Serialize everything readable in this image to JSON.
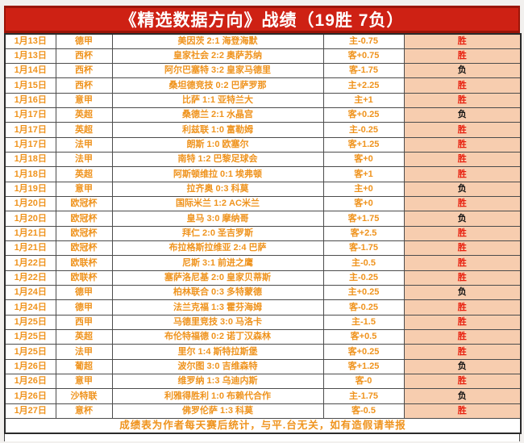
{
  "header": {
    "title": "《精选数据方向》战绩（19胜 7负）",
    "record_wins": 19,
    "record_losses": 7,
    "bg_color": "#ce2114",
    "border_color": "#9b1508",
    "text_color": "#ffffff"
  },
  "table": {
    "text_color": "#ef931d",
    "result_bg_color": "#f7cdaf",
    "win_color": "#e8200f",
    "loss_color": "#141414",
    "win_label": "胜",
    "loss_label": "负",
    "columns": [
      "date",
      "league",
      "match",
      "handicap",
      "result"
    ],
    "rows": [
      {
        "date": "1月13日",
        "league": "德甲",
        "match": "美因茨 2:1 海登海默",
        "handicap": "主-0.75",
        "outcome": "win"
      },
      {
        "date": "1月13日",
        "league": "西杯",
        "match": "皇家社会 2:2 奥萨苏纳",
        "handicap": "客+0.75",
        "outcome": "win"
      },
      {
        "date": "1月14日",
        "league": "西杯",
        "match": "阿尔巴塞特 3:2 皇家马德里",
        "handicap": "客-1.75",
        "outcome": "loss"
      },
      {
        "date": "1月15日",
        "league": "西杯",
        "match": "桑坦德竞技 0:2 巴萨罗那",
        "handicap": "主+2.25",
        "outcome": "win"
      },
      {
        "date": "1月16日",
        "league": "意甲",
        "match": "比萨 1:1 亚特兰大",
        "handicap": "主+1",
        "outcome": "win"
      },
      {
        "date": "1月17日",
        "league": "英超",
        "match": "桑德兰 2:1 水晶宫",
        "handicap": "客+0.25",
        "outcome": "loss"
      },
      {
        "date": "1月17日",
        "league": "英超",
        "match": "利兹联 1:0 富勒姆",
        "handicap": "主-0.25",
        "outcome": "win"
      },
      {
        "date": "1月17日",
        "league": "法甲",
        "match": "朗斯 1:0 欧塞尔",
        "handicap": "客+1.25",
        "outcome": "win"
      },
      {
        "date": "1月18日",
        "league": "法甲",
        "match": "南特 1:2 巴黎足球会",
        "handicap": "客+0",
        "outcome": "win"
      },
      {
        "date": "1月18日",
        "league": "英超",
        "match": "阿斯顿维拉 0:1 埃弗顿",
        "handicap": "客+1",
        "outcome": "win"
      },
      {
        "date": "1月19日",
        "league": "意甲",
        "match": "拉齐奥 0:3 科莫",
        "handicap": "主+0",
        "outcome": "loss"
      },
      {
        "date": "1月20日",
        "league": "欧冠杯",
        "match": "国际米兰 1:2 AC米兰",
        "handicap": "客+0",
        "outcome": "win"
      },
      {
        "date": "1月20日",
        "league": "欧冠杯",
        "match": "皇马 3:0 摩纳哥",
        "handicap": "客+1.75",
        "outcome": "loss"
      },
      {
        "date": "1月21日",
        "league": "欧冠杯",
        "match": "拜仁 2:0 圣吉罗斯",
        "handicap": "客+2.5",
        "outcome": "win"
      },
      {
        "date": "1月21日",
        "league": "欧冠杯",
        "match": "布拉格斯拉维亚 2:4 巴萨",
        "handicap": "客-1.75",
        "outcome": "win"
      },
      {
        "date": "1月22日",
        "league": "欧联杯",
        "match": "尼斯 3:1 前进之鹰",
        "handicap": "主-0.5",
        "outcome": "win"
      },
      {
        "date": "1月22日",
        "league": "欧联杯",
        "match": "塞萨洛尼基 2:0 皇家贝蒂斯",
        "handicap": "主-0.25",
        "outcome": "win"
      },
      {
        "date": "1月24日",
        "league": "德甲",
        "match": "柏林联合 0:3 多特蒙德",
        "handicap": "主+0.25",
        "outcome": "loss"
      },
      {
        "date": "1月24日",
        "league": "德甲",
        "match": "法兰克福 1:3 霍芬海姆",
        "handicap": "客-0.25",
        "outcome": "win"
      },
      {
        "date": "1月25日",
        "league": "西甲",
        "match": "马德里竞技 3:0 马洛卡",
        "handicap": "主-1.5",
        "outcome": "win"
      },
      {
        "date": "1月25日",
        "league": "英超",
        "match": "布伦特福德 0:2 诺丁汉森林",
        "handicap": "客+0.5",
        "outcome": "win"
      },
      {
        "date": "1月25日",
        "league": "法甲",
        "match": "里尔 1:4 斯特拉斯堡",
        "handicap": "客+0.25",
        "outcome": "win"
      },
      {
        "date": "1月26日",
        "league": "葡超",
        "match": "波尔图 3:0 吉维森特",
        "handicap": "客+1.25",
        "outcome": "loss"
      },
      {
        "date": "1月26日",
        "league": "意甲",
        "match": "维罗纳 1:3 乌迪内斯",
        "handicap": "客-0",
        "outcome": "win"
      },
      {
        "date": "1月26日",
        "league": "沙特联",
        "match": "利雅得胜利 1:0 布赖代合作",
        "handicap": "主-1.75",
        "outcome": "loss"
      },
      {
        "date": "1月27日",
        "league": "意杯",
        "match": "佛罗伦萨 1:3 科莫",
        "handicap": "客-0.5",
        "outcome": "win"
      }
    ]
  },
  "footer": {
    "note": "成绩表为作者每天赛后统计，与平.台无关，如有造假请举报"
  }
}
